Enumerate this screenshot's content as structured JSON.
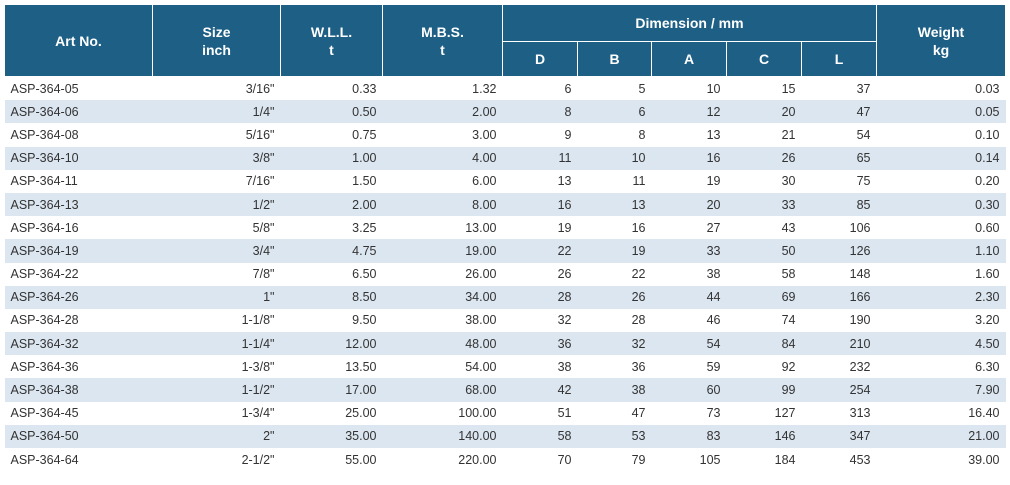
{
  "header": {
    "art_no": "Art No.",
    "size": "Size",
    "size_unit": "inch",
    "wll": "W.L.L.",
    "wll_unit": "t",
    "mbs": "M.B.S.",
    "mbs_unit": "t",
    "dimension": "Dimension / mm",
    "dim_d": "D",
    "dim_b": "B",
    "dim_a": "A",
    "dim_c": "C",
    "dim_l": "L",
    "weight": "Weight",
    "weight_unit": "kg"
  },
  "rows": [
    {
      "art": "ASP-364-05",
      "size": "3/16\"",
      "wll": "0.33",
      "mbs": "1.32",
      "d": "6",
      "b": "5",
      "a": "10",
      "c": "15",
      "l": "37",
      "w": "0.03"
    },
    {
      "art": "ASP-364-06",
      "size": "1/4\"",
      "wll": "0.50",
      "mbs": "2.00",
      "d": "8",
      "b": "6",
      "a": "12",
      "c": "20",
      "l": "47",
      "w": "0.05"
    },
    {
      "art": "ASP-364-08",
      "size": "5/16\"",
      "wll": "0.75",
      "mbs": "3.00",
      "d": "9",
      "b": "8",
      "a": "13",
      "c": "21",
      "l": "54",
      "w": "0.10"
    },
    {
      "art": "ASP-364-10",
      "size": "3/8\"",
      "wll": "1.00",
      "mbs": "4.00",
      "d": "11",
      "b": "10",
      "a": "16",
      "c": "26",
      "l": "65",
      "w": "0.14"
    },
    {
      "art": "ASP-364-11",
      "size": "7/16\"",
      "wll": "1.50",
      "mbs": "6.00",
      "d": "13",
      "b": "11",
      "a": "19",
      "c": "30",
      "l": "75",
      "w": "0.20"
    },
    {
      "art": "ASP-364-13",
      "size": "1/2\"",
      "wll": "2.00",
      "mbs": "8.00",
      "d": "16",
      "b": "13",
      "a": "20",
      "c": "33",
      "l": "85",
      "w": "0.30"
    },
    {
      "art": "ASP-364-16",
      "size": "5/8\"",
      "wll": "3.25",
      "mbs": "13.00",
      "d": "19",
      "b": "16",
      "a": "27",
      "c": "43",
      "l": "106",
      "w": "0.60"
    },
    {
      "art": "ASP-364-19",
      "size": "3/4\"",
      "wll": "4.75",
      "mbs": "19.00",
      "d": "22",
      "b": "19",
      "a": "33",
      "c": "50",
      "l": "126",
      "w": "1.10"
    },
    {
      "art": "ASP-364-22",
      "size": "7/8\"",
      "wll": "6.50",
      "mbs": "26.00",
      "d": "26",
      "b": "22",
      "a": "38",
      "c": "58",
      "l": "148",
      "w": "1.60"
    },
    {
      "art": "ASP-364-26",
      "size": "1\"",
      "wll": "8.50",
      "mbs": "34.00",
      "d": "28",
      "b": "26",
      "a": "44",
      "c": "69",
      "l": "166",
      "w": "2.30"
    },
    {
      "art": "ASP-364-28",
      "size": "1-1/8\"",
      "wll": "9.50",
      "mbs": "38.00",
      "d": "32",
      "b": "28",
      "a": "46",
      "c": "74",
      "l": "190",
      "w": "3.20"
    },
    {
      "art": "ASP-364-32",
      "size": "1-1/4\"",
      "wll": "12.00",
      "mbs": "48.00",
      "d": "36",
      "b": "32",
      "a": "54",
      "c": "84",
      "l": "210",
      "w": "4.50"
    },
    {
      "art": "ASP-364-36",
      "size": "1-3/8\"",
      "wll": "13.50",
      "mbs": "54.00",
      "d": "38",
      "b": "36",
      "a": "59",
      "c": "92",
      "l": "232",
      "w": "6.30"
    },
    {
      "art": "ASP-364-38",
      "size": "1-1/2\"",
      "wll": "17.00",
      "mbs": "68.00",
      "d": "42",
      "b": "38",
      "a": "60",
      "c": "99",
      "l": "254",
      "w": "7.90"
    },
    {
      "art": "ASP-364-45",
      "size": "1-3/4\"",
      "wll": "25.00",
      "mbs": "100.00",
      "d": "51",
      "b": "47",
      "a": "73",
      "c": "127",
      "l": "313",
      "w": "16.40"
    },
    {
      "art": "ASP-364-50",
      "size": "2\"",
      "wll": "35.00",
      "mbs": "140.00",
      "d": "58",
      "b": "53",
      "a": "83",
      "c": "146",
      "l": "347",
      "w": "21.00"
    },
    {
      "art": "ASP-364-64",
      "size": "2-1/2\"",
      "wll": "55.00",
      "mbs": "220.00",
      "d": "70",
      "b": "79",
      "a": "105",
      "c": "184",
      "l": "453",
      "w": "39.00"
    }
  ],
  "colors": {
    "header_bg": "#1d5f85",
    "stripe_bg": "#dce6f0"
  }
}
